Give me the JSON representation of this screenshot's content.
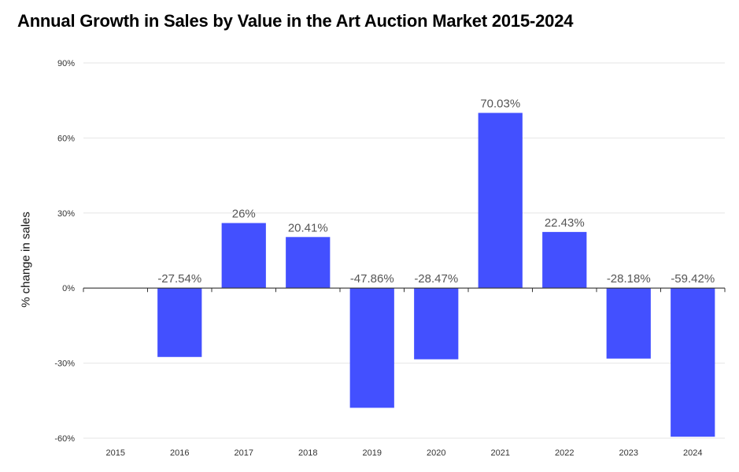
{
  "chart_data": {
    "type": "bar",
    "title": "Annual Growth in Sales by Value in the Art Auction Market 2015-2024",
    "xlabel": "",
    "ylabel": "% change in sales",
    "categories": [
      "2015",
      "2016",
      "2017",
      "2018",
      "2019",
      "2020",
      "2021",
      "2022",
      "2023",
      "2024"
    ],
    "values": [
      null,
      -27.54,
      26,
      20.41,
      -47.86,
      -28.47,
      70.03,
      22.43,
      -28.18,
      -59.42
    ],
    "data_labels": [
      "",
      "-27.54%",
      "26%",
      "20.41%",
      "-47.86%",
      "-28.47%",
      "70.03%",
      "22.43%",
      "-28.18%",
      "-59.42%"
    ],
    "ylim": [
      -60,
      90
    ],
    "yticks": [
      -60,
      -30,
      0,
      30,
      60,
      90
    ],
    "ytick_labels": [
      "-60%",
      "-30%",
      "0%",
      "30%",
      "60%",
      "90%"
    ],
    "grid": true,
    "legend": "none",
    "bar_color": "#4350FF"
  }
}
